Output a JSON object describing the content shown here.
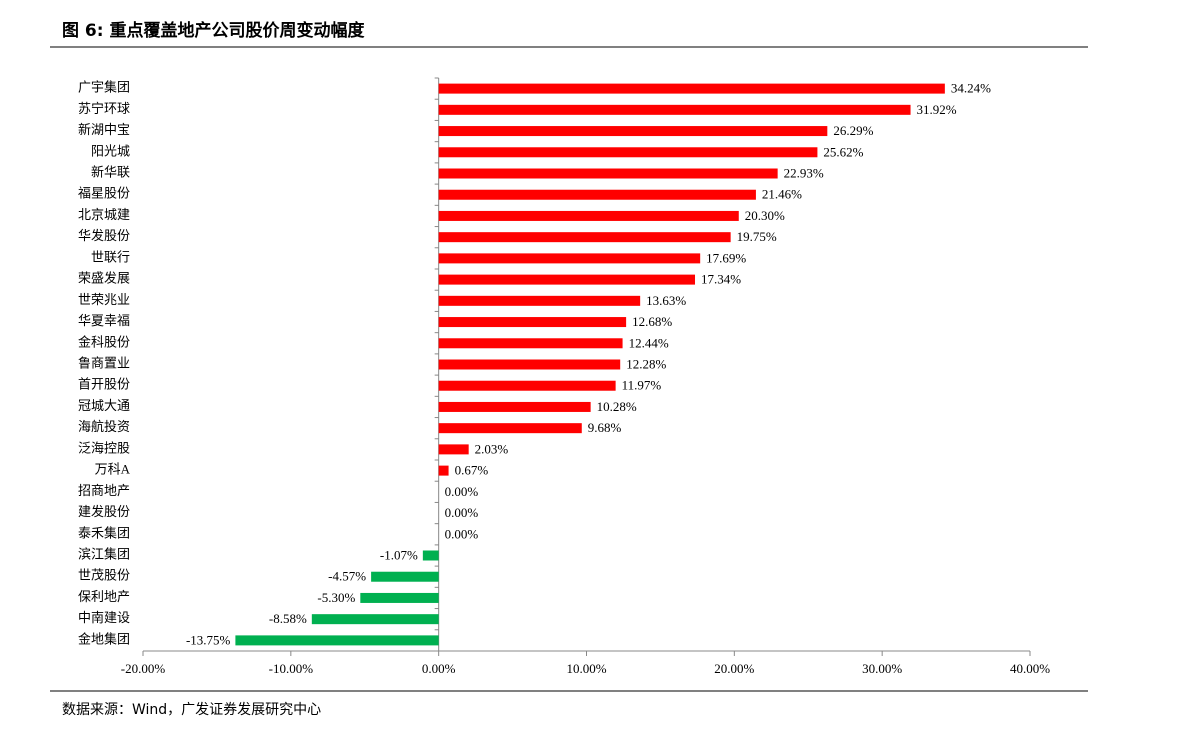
{
  "chart_data": {
    "type": "bar",
    "orientation": "horizontal",
    "title": "图 6:  重点覆盖地产公司股价周变动幅度",
    "source": "数据来源：Wind，广发证券发展研究中心",
    "categories": [
      "广宇集团",
      "苏宁环球",
      "新湖中宝",
      "阳光城",
      "新华联",
      "福星股份",
      "北京城建",
      "华发股份",
      "世联行",
      "荣盛发展",
      "世荣兆业",
      "华夏幸福",
      "金科股份",
      "鲁商置业",
      "首开股份",
      "冠城大通",
      "海航投资",
      "泛海控股",
      "万科A",
      "招商地产",
      "建发股份",
      "泰禾集团",
      "滨江集团",
      "世茂股份",
      "保利地产",
      "中南建设",
      "金地集团"
    ],
    "values": [
      34.24,
      31.92,
      26.29,
      25.62,
      22.93,
      21.46,
      20.3,
      19.75,
      17.69,
      17.34,
      13.63,
      12.68,
      12.44,
      12.28,
      11.97,
      10.28,
      9.68,
      2.03,
      0.67,
      0.0,
      0.0,
      0.0,
      -1.07,
      -4.57,
      -5.3,
      -8.58,
      -13.75
    ],
    "value_labels": [
      "34.24%",
      "31.92%",
      "26.29%",
      "25.62%",
      "22.93%",
      "21.46%",
      "20.30%",
      "19.75%",
      "17.69%",
      "17.34%",
      "13.63%",
      "12.68%",
      "12.44%",
      "12.28%",
      "11.97%",
      "10.28%",
      "9.68%",
      "2.03%",
      "0.67%",
      "0.00%",
      "0.00%",
      "0.00%",
      "-1.07%",
      "-4.57%",
      "-5.30%",
      "-8.58%",
      "-13.75%"
    ],
    "color": "#ff0000",
    "negative_color": "#00b050",
    "xlim": [
      -20,
      40
    ],
    "xticks": [
      {
        "value": -20,
        "label": "-20.00%"
      },
      {
        "value": -10,
        "label": "-10.00%"
      },
      {
        "value": 0,
        "label": "0.00%"
      },
      {
        "value": 10,
        "label": "10.00%"
      },
      {
        "value": 20,
        "label": "20.00%"
      },
      {
        "value": 30,
        "label": "30.00%"
      },
      {
        "value": 40,
        "label": "40.00%"
      }
    ],
    "grid": false
  }
}
